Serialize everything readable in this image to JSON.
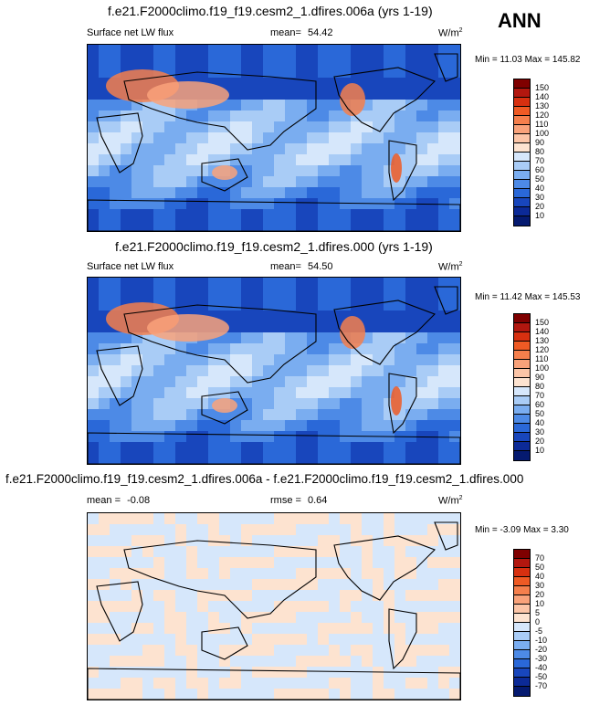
{
  "season": "ANN",
  "units_base": "W/m",
  "units_exp": "2",
  "panels": [
    {
      "title": "f.e21.F2000climo.f19_f19.cesm2_1.dfires.006a (yrs 1-19)",
      "variable": "Surface net LW flux",
      "stat_label": "mean=",
      "stat_value": "54.42",
      "minmax": "Min = 11.03 Max = 145.82",
      "colorbar": {
        "labels": [
          "150",
          "140",
          "130",
          "120",
          "110",
          "100",
          "90",
          "80",
          "70",
          "60",
          "50",
          "40",
          "30",
          "20",
          "10"
        ],
        "colors": [
          "#7f0000",
          "#b2170f",
          "#d73010",
          "#ef5a24",
          "#f57f4c",
          "#f9a27a",
          "#fcc5a7",
          "#fde3d0",
          "#d6e7fb",
          "#a9ccf6",
          "#7aadf0",
          "#4d8ae6",
          "#2a68d8",
          "#1846bc",
          "#0c2a97",
          "#051a70"
        ]
      },
      "map_style": "field"
    },
    {
      "title": "f.e21.F2000climo.f19_f19.cesm2_1.dfires.000 (yrs 1-19)",
      "variable": "Surface net LW flux",
      "stat_label": "mean=",
      "stat_value": "54.50",
      "minmax": "Min = 11.42 Max = 145.53",
      "colorbar": {
        "labels": [
          "150",
          "140",
          "130",
          "120",
          "110",
          "100",
          "90",
          "80",
          "70",
          "60",
          "50",
          "40",
          "30",
          "20",
          "10"
        ],
        "colors": [
          "#7f0000",
          "#b2170f",
          "#d73010",
          "#ef5a24",
          "#f57f4c",
          "#f9a27a",
          "#fcc5a7",
          "#fde3d0",
          "#d6e7fb",
          "#a9ccf6",
          "#7aadf0",
          "#4d8ae6",
          "#2a68d8",
          "#1846bc",
          "#0c2a97",
          "#051a70"
        ]
      },
      "map_style": "field"
    },
    {
      "title": "f.e21.F2000climo.f19_f19.cesm2_1.dfires.006a - f.e21.F2000climo.f19_f19.cesm2_1.dfires.000",
      "mean_label": "mean =",
      "mean_value": "-0.08",
      "rmse_label": "rmse =",
      "rmse_value": "0.64",
      "minmax": "Min = -3.09 Max =  3.30",
      "colorbar": {
        "labels": [
          "70",
          "50",
          "40",
          "30",
          "20",
          "10",
          "5",
          "0",
          "-5",
          "-10",
          "-20",
          "-30",
          "-40",
          "-50",
          "-70"
        ],
        "colors": [
          "#7f0000",
          "#b2170f",
          "#d73010",
          "#ef5a24",
          "#f57f4c",
          "#f9a27a",
          "#fcc5a7",
          "#fde3d0",
          "#d6e7fb",
          "#a9ccf6",
          "#7aadf0",
          "#4d8ae6",
          "#2a68d8",
          "#1846bc",
          "#0c2a97",
          "#051a70"
        ]
      },
      "map_style": "diff"
    }
  ],
  "chart_data": [
    {
      "type": "heatmap",
      "title": "f.e21.F2000climo.f19_f19.cesm2_1.dfires.006a (yrs 1-19)",
      "variable": "Surface net LW flux",
      "units": "W/m2",
      "mean": 54.42,
      "min": 11.03,
      "max": 145.82,
      "contour_levels": [
        10,
        20,
        30,
        40,
        50,
        60,
        70,
        80,
        90,
        100,
        110,
        120,
        130,
        140,
        150
      ]
    },
    {
      "type": "heatmap",
      "title": "f.e21.F2000climo.f19_f19.cesm2_1.dfires.000 (yrs 1-19)",
      "variable": "Surface net LW flux",
      "units": "W/m2",
      "mean": 54.5,
      "min": 11.42,
      "max": 145.53,
      "contour_levels": [
        10,
        20,
        30,
        40,
        50,
        60,
        70,
        80,
        90,
        100,
        110,
        120,
        130,
        140,
        150
      ]
    },
    {
      "type": "heatmap",
      "title": "f.e21.F2000climo.f19_f19.cesm2_1.dfires.006a - f.e21.F2000climo.f19_f19.cesm2_1.dfires.000",
      "units": "W/m2",
      "mean": -0.08,
      "rmse": 0.64,
      "min": -3.09,
      "max": 3.3,
      "contour_levels": [
        -70,
        -50,
        -40,
        -30,
        -20,
        -10,
        -5,
        0,
        5,
        10,
        20,
        30,
        40,
        50,
        70
      ]
    }
  ]
}
